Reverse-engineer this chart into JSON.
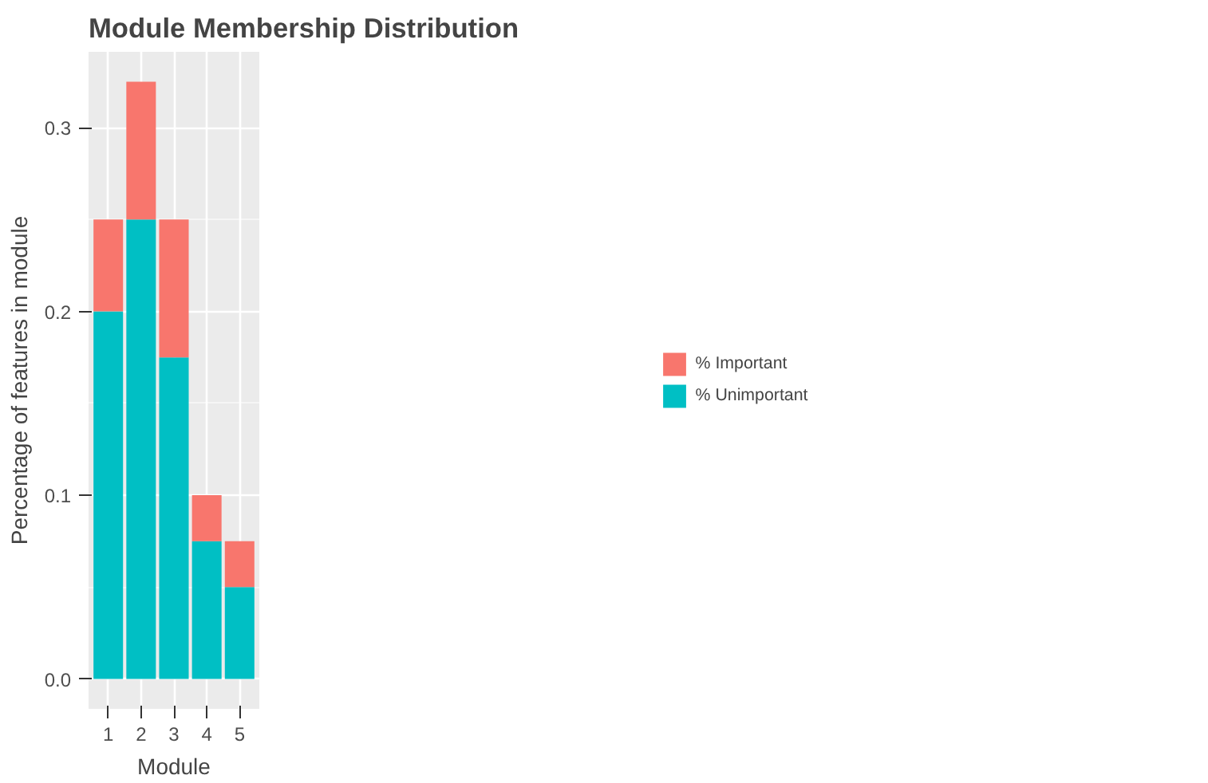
{
  "chart_data": {
    "type": "bar",
    "title": "Module Membership Distribution",
    "xlabel": "Module",
    "ylabel": "Percentage of features in module",
    "categories": [
      "1",
      "2",
      "3",
      "4",
      "5"
    ],
    "stacked": true,
    "series": [
      {
        "name": "% Unimportant",
        "color": "#00bfc4",
        "values": [
          0.2,
          0.25,
          0.175,
          0.075,
          0.05
        ]
      },
      {
        "name": "% Important",
        "color": "#f8766d",
        "values": [
          0.05,
          0.075,
          0.075,
          0.025,
          0.025
        ]
      }
    ],
    "ylim": [
      -0.01625,
      0.34125
    ],
    "yticks": [
      {
        "value": 0,
        "label": "0.0"
      },
      0.1,
      0.2,
      0.3
    ],
    "grid": true,
    "legend": "right"
  }
}
